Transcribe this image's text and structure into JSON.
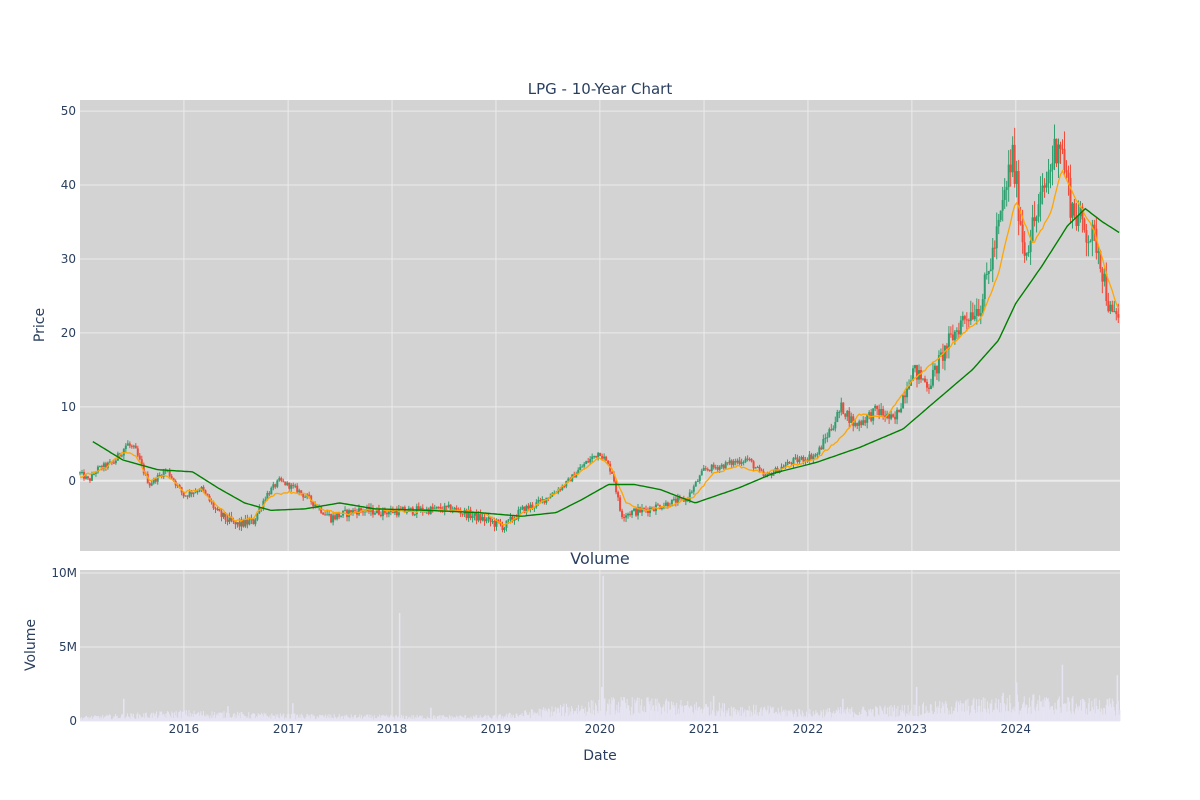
{
  "chart_data": {
    "type": "candlestick",
    "title": "LPG - 10-Year Chart",
    "price_panel": {
      "ylabel": "Price",
      "yticks": [
        0,
        10,
        20,
        30,
        40,
        50
      ],
      "ylim": [
        -9.5,
        51.5
      ],
      "background": "#d3d3d3",
      "grid": true,
      "candle_up_color": "#2e9e6e",
      "candle_down_color": "#ef4a3a",
      "series": [
        {
          "kind": "ma_short",
          "color": "#ffa500",
          "points": [
            [
              "2015-01-01",
              0.5
            ],
            [
              "2015-04-01",
              1.8
            ],
            [
              "2015-06-01",
              3.8
            ],
            [
              "2015-07-15",
              3.5
            ],
            [
              "2015-09-01",
              0.0
            ],
            [
              "2015-11-01",
              0.8
            ],
            [
              "2016-01-01",
              -1.5
            ],
            [
              "2016-03-01",
              -1.2
            ],
            [
              "2016-05-01",
              -3.5
            ],
            [
              "2016-07-01",
              -5.5
            ],
            [
              "2016-09-01",
              -5.0
            ],
            [
              "2016-11-01",
              -2.0
            ],
            [
              "2017-01-01",
              -1.5
            ],
            [
              "2017-03-01",
              -1.8
            ],
            [
              "2017-05-01",
              -4.0
            ],
            [
              "2017-08-01",
              -4.5
            ],
            [
              "2017-11-01",
              -3.8
            ],
            [
              "2018-03-01",
              -4.2
            ],
            [
              "2018-06-01",
              -4.0
            ],
            [
              "2018-09-01",
              -4.0
            ],
            [
              "2018-12-01",
              -4.5
            ],
            [
              "2019-02-01",
              -6.0
            ],
            [
              "2019-04-01",
              -4.5
            ],
            [
              "2019-07-01",
              -2.5
            ],
            [
              "2019-10-01",
              0.5
            ],
            [
              "2020-01-01",
              3.2
            ],
            [
              "2020-02-15",
              1.5
            ],
            [
              "2020-04-01",
              -3.0
            ],
            [
              "2020-06-01",
              -4.0
            ],
            [
              "2020-09-01",
              -3.5
            ],
            [
              "2020-12-01",
              -2.0
            ],
            [
              "2021-02-01",
              1.0
            ],
            [
              "2021-05-01",
              2.0
            ],
            [
              "2021-08-01",
              1.0
            ],
            [
              "2021-11-01",
              2.0
            ],
            [
              "2022-02-01",
              3.0
            ],
            [
              "2022-05-01",
              6.0
            ],
            [
              "2022-07-01",
              9.0
            ],
            [
              "2022-10-01",
              8.5
            ],
            [
              "2023-01-01",
              13.5
            ],
            [
              "2023-04-01",
              16.5
            ],
            [
              "2023-07-01",
              20.0
            ],
            [
              "2023-09-01",
              22.0
            ],
            [
              "2023-11-01",
              28.0
            ],
            [
              "2024-01-01",
              38.0
            ],
            [
              "2024-03-01",
              32.0
            ],
            [
              "2024-05-01",
              36.0
            ],
            [
              "2024-06-10",
              42.0
            ],
            [
              "2024-08-01",
              38.0
            ],
            [
              "2024-10-01",
              34.0
            ],
            [
              "2024-11-15",
              28.0
            ],
            [
              "2025-01-01",
              22.5
            ]
          ]
        },
        {
          "kind": "ma_long",
          "color": "#008000",
          "points": [
            [
              "2015-02-15",
              5.3
            ],
            [
              "2015-06-01",
              2.8
            ],
            [
              "2015-10-01",
              1.5
            ],
            [
              "2016-02-01",
              1.2
            ],
            [
              "2016-05-01",
              -1.0
            ],
            [
              "2016-08-01",
              -3.0
            ],
            [
              "2016-11-01",
              -4.0
            ],
            [
              "2017-03-01",
              -3.8
            ],
            [
              "2017-07-01",
              -3.0
            ],
            [
              "2017-11-01",
              -3.8
            ],
            [
              "2018-05-01",
              -4.0
            ],
            [
              "2018-11-01",
              -4.3
            ],
            [
              "2019-04-01",
              -4.8
            ],
            [
              "2019-08-01",
              -4.3
            ],
            [
              "2019-11-01",
              -2.5
            ],
            [
              "2020-02-01",
              -0.5
            ],
            [
              "2020-05-01",
              -0.5
            ],
            [
              "2020-08-01",
              -1.2
            ],
            [
              "2020-12-01",
              -3.0
            ],
            [
              "2021-05-01",
              -1.0
            ],
            [
              "2021-09-01",
              1.0
            ],
            [
              "2022-02-01",
              2.5
            ],
            [
              "2022-07-01",
              4.5
            ],
            [
              "2022-12-01",
              7.0
            ],
            [
              "2023-04-01",
              11.0
            ],
            [
              "2023-08-01",
              15.0
            ],
            [
              "2023-11-01",
              19.0
            ],
            [
              "2024-01-01",
              24.0
            ],
            [
              "2024-04-01",
              29.0
            ],
            [
              "2024-07-01",
              34.5
            ],
            [
              "2024-09-01",
              36.8
            ],
            [
              "2024-11-01",
              35.0
            ],
            [
              "2025-01-01",
              33.5
            ]
          ]
        },
        {
          "kind": "close",
          "points": [
            [
              "2015-01-01",
              1.0
            ],
            [
              "2015-02-01",
              0.0
            ],
            [
              "2015-03-01",
              1.5
            ],
            [
              "2015-05-01",
              2.5
            ],
            [
              "2015-06-15",
              5.0
            ],
            [
              "2015-07-15",
              4.0
            ],
            [
              "2015-09-01",
              -0.5
            ],
            [
              "2015-11-01",
              1.5
            ],
            [
              "2016-01-01",
              -2.0
            ],
            [
              "2016-03-01",
              -1.0
            ],
            [
              "2016-05-01",
              -4.5
            ],
            [
              "2016-07-01",
              -6.0
            ],
            [
              "2016-09-01",
              -5.5
            ],
            [
              "2016-10-15",
              -2.0
            ],
            [
              "2016-12-01",
              0.0
            ],
            [
              "2017-02-01",
              -1.2
            ],
            [
              "2017-04-01",
              -3.0
            ],
            [
              "2017-06-01",
              -5.0
            ],
            [
              "2017-09-01",
              -4.0
            ],
            [
              "2017-12-01",
              -4.2
            ],
            [
              "2018-04-01",
              -4.0
            ],
            [
              "2018-08-01",
              -3.8
            ],
            [
              "2018-11-01",
              -5.0
            ],
            [
              "2019-02-01",
              -6.2
            ],
            [
              "2019-04-01",
              -4.0
            ],
            [
              "2019-06-01",
              -3.0
            ],
            [
              "2019-09-01",
              -0.5
            ],
            [
              "2019-11-01",
              2.0
            ],
            [
              "2020-01-01",
              4.0
            ],
            [
              "2020-02-15",
              1.0
            ],
            [
              "2020-03-15",
              -4.5
            ],
            [
              "2020-06-01",
              -4.0
            ],
            [
              "2020-09-01",
              -3.0
            ],
            [
              "2020-11-01",
              -2.5
            ],
            [
              "2021-01-01",
              1.5
            ],
            [
              "2021-03-01",
              2.0
            ],
            [
              "2021-06-01",
              3.0
            ],
            [
              "2021-08-01",
              0.5
            ],
            [
              "2021-11-01",
              2.5
            ],
            [
              "2022-02-01",
              3.5
            ],
            [
              "2022-05-01",
              10.0
            ],
            [
              "2022-06-15",
              7.5
            ],
            [
              "2022-09-01",
              9.5
            ],
            [
              "2022-11-01",
              8.0
            ],
            [
              "2023-01-01",
              15.0
            ],
            [
              "2023-03-01",
              13.0
            ],
            [
              "2023-05-01",
              18.0
            ],
            [
              "2023-07-01",
              22.0
            ],
            [
              "2023-09-01",
              24.0
            ],
            [
              "2023-11-01",
              34.0
            ],
            [
              "2023-12-20",
              44.0
            ],
            [
              "2024-02-01",
              31.0
            ],
            [
              "2024-04-01",
              38.0
            ],
            [
              "2024-06-01",
              47.0
            ],
            [
              "2024-07-15",
              37.0
            ],
            [
              "2024-09-01",
              34.0
            ],
            [
              "2024-10-15",
              32.0
            ],
            [
              "2024-12-01",
              22.0
            ],
            [
              "2025-01-01",
              22.5
            ]
          ]
        }
      ]
    },
    "volume_panel": {
      "title": "Volume",
      "ylabel": "Volume",
      "yticks": [
        0,
        5000000,
        10000000
      ],
      "ytick_labels": [
        "0",
        "5M",
        "10M"
      ],
      "ylim": [
        0,
        10200000
      ],
      "bar_color": "#e6e4f2",
      "background": "#d3d3d3",
      "baseline": [
        [
          "2015-01-01",
          200000
        ],
        [
          "2016-01-01",
          450000
        ],
        [
          "2017-01-01",
          300000
        ],
        [
          "2018-01-01",
          250000
        ],
        [
          "2019-01-01",
          250000
        ],
        [
          "2019-07-01",
          600000
        ],
        [
          "2020-03-01",
          1000000
        ],
        [
          "2021-01-01",
          800000
        ],
        [
          "2022-01-01",
          500000
        ],
        [
          "2023-01-01",
          700000
        ],
        [
          "2024-01-01",
          1100000
        ],
        [
          "2025-01-01",
          900000
        ]
      ],
      "spikes": [
        [
          "2015-06-01",
          1500000
        ],
        [
          "2016-06-01",
          1000000
        ],
        [
          "2017-01-15",
          1200000
        ],
        [
          "2018-01-25",
          7300000
        ],
        [
          "2018-05-15",
          900000
        ],
        [
          "2020-01-10",
          9800000
        ],
        [
          "2020-01-05",
          2300000
        ],
        [
          "2020-06-15",
          1600000
        ],
        [
          "2021-02-01",
          1700000
        ],
        [
          "2022-05-01",
          1500000
        ],
        [
          "2023-01-15",
          2300000
        ],
        [
          "2023-11-15",
          1900000
        ],
        [
          "2024-01-01",
          2600000
        ],
        [
          "2024-03-01",
          1800000
        ],
        [
          "2024-06-10",
          3800000
        ],
        [
          "2024-12-20",
          3100000
        ]
      ]
    },
    "x_axis": {
      "label": "Date",
      "range": [
        "2015-01-01",
        "2025-01-01"
      ],
      "ticks": [
        "2016-01-01",
        "2017-01-01",
        "2018-01-01",
        "2019-01-01",
        "2020-01-01",
        "2021-01-01",
        "2022-01-01",
        "2023-01-01",
        "2024-01-01"
      ],
      "tick_labels": [
        "2016",
        "2017",
        "2018",
        "2019",
        "2020",
        "2021",
        "2022",
        "2023",
        "2024"
      ]
    }
  }
}
